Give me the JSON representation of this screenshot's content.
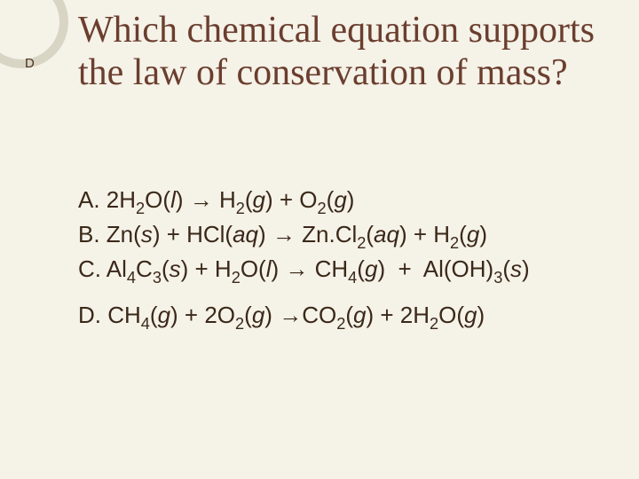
{
  "colors": {
    "background": "#f5f2e8",
    "circle_outer": "#d9d5c5",
    "question_text": "#6b3e2e",
    "body_text": "#3a2818"
  },
  "corner_letter": "D",
  "question": "Which chemical equation supports the law of conservation of mass?",
  "answers": {
    "a": {
      "label": "A.",
      "left": "2H₂O(l)",
      "arrow": "→",
      "right": "H₂(g) + O₂(g)"
    },
    "b": {
      "label": "B.",
      "left": "Zn(s) + HCl(aq)",
      "arrow": "→",
      "right": "Zn.Cl₂(aq) + H₂(g)"
    },
    "c": {
      "label": "C.",
      "left": "Al₄C₃(s) + H₂O(l)",
      "arrow": "→",
      "right": "CH₄(g)  +  Al(OH)₃(s)"
    },
    "d": {
      "label": "D.",
      "left": "CH₄(g) + 2O₂(g)",
      "arrow": "→",
      "right": "CO₂(g) + 2H₂O(g)"
    }
  },
  "typography": {
    "question_fontsize": 42,
    "answer_fontsize": 26,
    "corner_letter_fontsize": 15
  }
}
